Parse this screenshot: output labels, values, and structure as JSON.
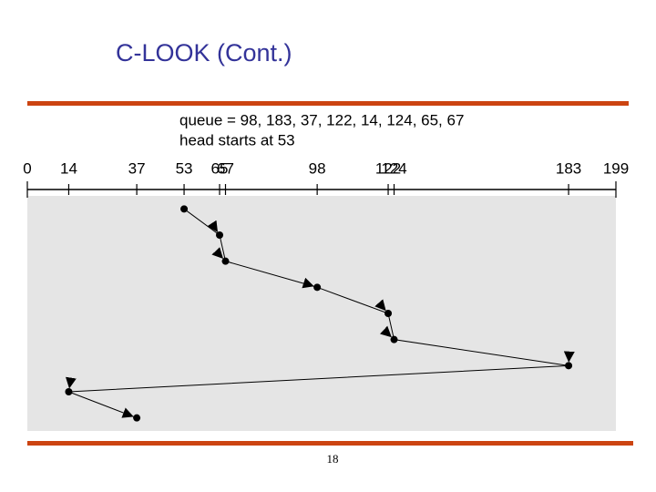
{
  "title": "C-LOOK (Cont.)",
  "page_number": "18",
  "chart_data": {
    "type": "line",
    "annotations": [
      "queue = 98, 183, 37, 122, 14, 124, 65, 67",
      "head starts at 53"
    ],
    "x": [
      53,
      65,
      67,
      98,
      122,
      124,
      183,
      14,
      37
    ],
    "values": [
      1,
      2,
      3,
      4,
      5,
      6,
      7,
      8,
      9
    ],
    "xlim": [
      0,
      199
    ],
    "xticks": [
      0,
      14,
      37,
      53,
      65,
      67,
      98,
      122,
      124,
      183,
      199
    ],
    "ylim": [
      0.5,
      9.5
    ],
    "color": "#000000"
  }
}
